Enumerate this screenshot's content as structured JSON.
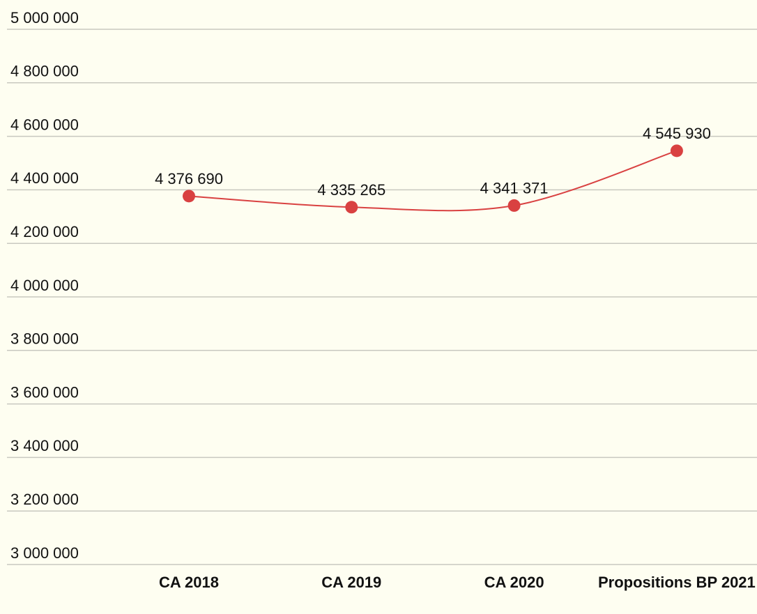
{
  "chart_data": {
    "type": "line",
    "categories": [
      "CA 2018",
      "CA 2019",
      "CA 2020",
      "Propositions BP 2021"
    ],
    "values": [
      4376690,
      4335265,
      4341371,
      4545930
    ],
    "value_labels": [
      "4 376 690",
      "4 335 265",
      "4 341 371",
      "4 545 930"
    ],
    "color": "#d94141",
    "ylim": [
      3000000,
      5000000
    ],
    "yticks": [
      {
        "value": 3000000,
        "label": "3 000 000"
      },
      {
        "value": 3200000,
        "label": "3 200 000"
      },
      {
        "value": 3400000,
        "label": "3 400 000"
      },
      {
        "value": 3600000,
        "label": "3 600 000"
      },
      {
        "value": 3800000,
        "label": "3 800 000"
      },
      {
        "value": 4000000,
        "label": "4 000 000"
      },
      {
        "value": 4200000,
        "label": "4 200 000"
      },
      {
        "value": 4400000,
        "label": "4 400 000"
      },
      {
        "value": 4600000,
        "label": "4 600 000"
      },
      {
        "value": 4800000,
        "label": "4 800 000"
      },
      {
        "value": 5000000,
        "label": "5 000 000"
      }
    ],
    "grid": true,
    "smooth": true
  }
}
